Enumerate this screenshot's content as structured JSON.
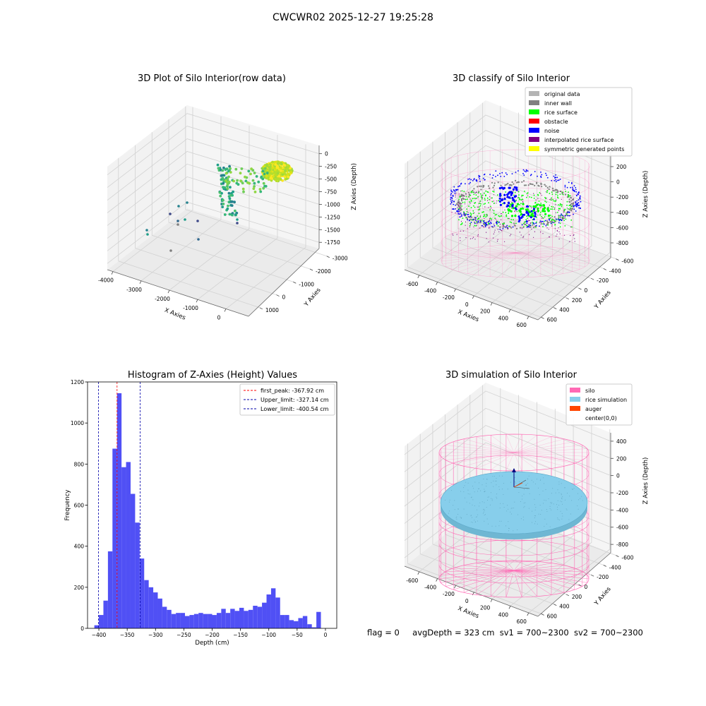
{
  "suptitle": "CWCWR02 2025-12-27 19:25:28",
  "footer": {
    "flag": "flag = 0",
    "avg": "avgDepth = 323 cm",
    "sv1": "sv1 = 700~2300",
    "sv2": "sv2 = 700~2300"
  },
  "colors": {
    "silo": "#ff69b4",
    "rice": "#87ceeb",
    "auger": "#ff4500",
    "rice_surface": "#00ff00",
    "noise": "#0000ff",
    "inner_wall": "#808080",
    "original": "#b4b4b4",
    "obstacle": "#ff0000",
    "interpolated": "#800080",
    "symmetric": "#ffff00",
    "hist_bar": "#5050f5"
  },
  "chart_data": [
    {
      "type": "scatter",
      "title": "3D Plot of Silo Interior(row data)",
      "xlabel": "X Axies",
      "ylabel": "Y Axies",
      "zlabel": "Z Axies (Depth)",
      "x_ticks": [
        "-4000",
        "-3000",
        "-2000",
        "-1000",
        "0"
      ],
      "y_ticks": [
        "1000",
        "0",
        "-1000",
        "-2000",
        "-3000"
      ],
      "z_ticks": [
        "0",
        "-250",
        "-500",
        "-750",
        "-1000",
        "-1250",
        "-1500",
        "-1750"
      ]
    },
    {
      "type": "scatter",
      "title": "3D classify of Silo Interior",
      "xlabel": "X Axies",
      "ylabel": "Y Axies",
      "zlabel": "Z Axies (Depth)",
      "legend_position": "top-right",
      "legend": [
        {
          "label": "original data",
          "color": "#b4b4b4"
        },
        {
          "label": "inner wall",
          "color": "#808080"
        },
        {
          "label": "rice surface",
          "color": "#00ff00"
        },
        {
          "label": "obstacle",
          "color": "#ff0000"
        },
        {
          "label": "noise",
          "color": "#0000ff"
        },
        {
          "label": "interpolated rice surface",
          "color": "#800080"
        },
        {
          "label": "symmetric generated points",
          "color": "#ffff00"
        }
      ],
      "x_ticks": [
        "-600",
        "-400",
        "-200",
        "0",
        "200",
        "400",
        "600"
      ],
      "y_ticks": [
        "600",
        "400",
        "200",
        "0",
        "-200",
        "-400",
        "-600"
      ],
      "z_ticks": [
        "200",
        "0",
        "-200",
        "-400",
        "-600",
        "-800"
      ]
    },
    {
      "type": "bar",
      "title": "Histogram of Z-Axies (Height) Values",
      "xlabel": "Depth (cm)",
      "ylabel": "Frequency",
      "xlim": [
        -420,
        20
      ],
      "ylim": [
        0,
        1200
      ],
      "x_ticks": [
        -400,
        -350,
        -300,
        -250,
        -200,
        -150,
        -100,
        -50,
        0
      ],
      "y_ticks": [
        0,
        200,
        400,
        600,
        800,
        1000,
        1200
      ],
      "bin_start": -408,
      "bin_width": 8,
      "values": [
        15,
        65,
        135,
        375,
        875,
        1145,
        785,
        810,
        655,
        515,
        340,
        235,
        200,
        175,
        145,
        105,
        90,
        70,
        75,
        75,
        60,
        65,
        70,
        75,
        70,
        70,
        65,
        75,
        95,
        75,
        95,
        85,
        100,
        85,
        90,
        110,
        105,
        125,
        165,
        195,
        150,
        65,
        65,
        40,
        35,
        50,
        60,
        20,
        5,
        80
      ],
      "lines": [
        {
          "label": "first_peak: -367.92 cm",
          "x": -367.92,
          "color": "#ff0000"
        },
        {
          "label": "Upper_limit: -327.14 cm",
          "x": -327.14,
          "color": "#0000aa"
        },
        {
          "label": "Lower_limit: -400.54 cm",
          "x": -400.54,
          "color": "#0000aa"
        }
      ],
      "legend_position": "top-right"
    },
    {
      "type": "scatter",
      "title": "3D simulation of Silo Interior",
      "xlabel": "X Axies",
      "ylabel": "Y Axies",
      "zlabel": "Z Axies (Depth)",
      "legend_position": "top-right",
      "legend": [
        {
          "label": "silo",
          "color": "#ff69b4"
        },
        {
          "label": "rice simulation",
          "color": "#87ceeb"
        },
        {
          "label": "auger",
          "color": "#ff4500"
        },
        {
          "label": "center(0,0)",
          "color": ""
        }
      ],
      "x_ticks": [
        "-600",
        "-400",
        "-200",
        "0",
        "200",
        "400",
        "600"
      ],
      "y_ticks": [
        "600",
        "400",
        "200",
        "0",
        "-200",
        "-400",
        "-600"
      ],
      "z_ticks": [
        "400",
        "200",
        "0",
        "-200",
        "-400",
        "-600",
        "-800"
      ]
    }
  ]
}
